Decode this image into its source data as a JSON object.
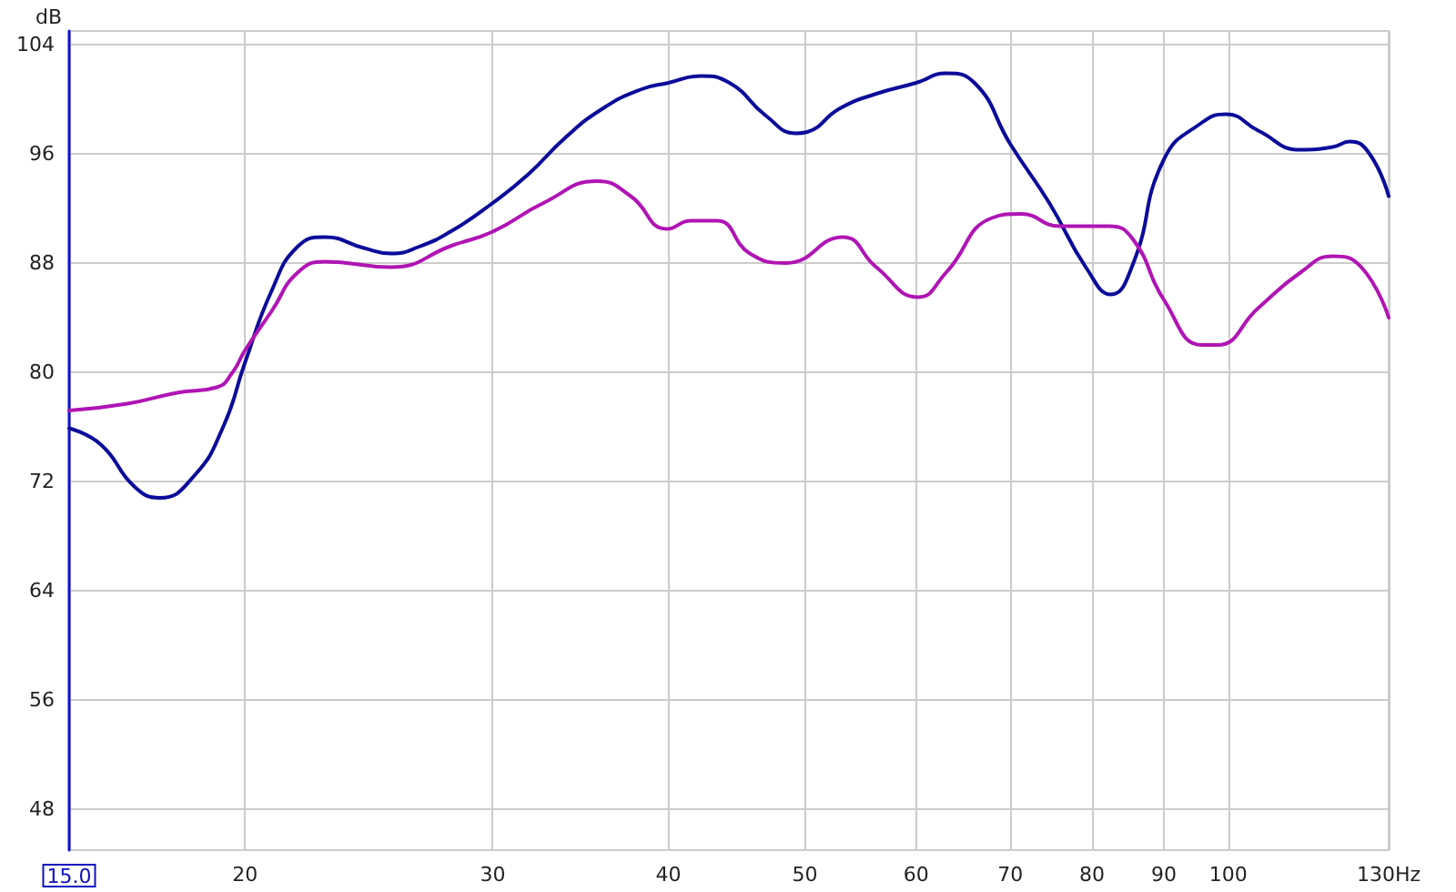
{
  "chart_data": {
    "type": "line",
    "ylabel": "dB",
    "log": "x",
    "grid": true,
    "marker": "none",
    "line_style": "solid",
    "xlim": [
      15,
      130
    ],
    "ylim": [
      45,
      105
    ],
    "xticks": [
      {
        "value": 15,
        "label": "15.0"
      },
      20,
      30,
      40,
      50,
      60,
      70,
      80,
      90,
      100,
      {
        "value": 130,
        "label": "130Hz"
      }
    ],
    "yticks": [
      48,
      56,
      64,
      72,
      80,
      88,
      96,
      104
    ],
    "series": [
      {
        "color": "#0b0b9a",
        "x": [
          15,
          15.8,
          16.7,
          17.4,
          18.4,
          19.3,
          20,
          20.9,
          21.8,
          22.8,
          24.3,
          25.4,
          26.6,
          28.1,
          30,
          31.8,
          33.8,
          35.9,
          38.2,
          40,
          42.2,
          44.2,
          46.9,
          49.3,
          50.2,
          52.9,
          56.2,
          60,
          63,
          66,
          70,
          74.6,
          79.3,
          82.5,
          85.6,
          90,
          95.8,
          99.6,
          105,
          112.5,
          118.6,
          122,
          126,
          130
        ],
        "values": [
          75.9,
          74.7,
          71.6,
          70.8,
          72.4,
          76,
          80.7,
          86,
          89.2,
          89.9,
          89.1,
          88.7,
          89.2,
          90.4,
          92.4,
          94.5,
          97.2,
          99.3,
          100.7,
          101.2,
          101.7,
          101.2,
          98.8,
          97.5,
          97.6,
          99.3,
          100.4,
          101.2,
          101.9,
          101.2,
          96.7,
          92.4,
          87.6,
          85.7,
          88,
          95.6,
          98.3,
          98.9,
          97.7,
          96.3,
          96.5,
          96.9,
          96,
          92.9
        ]
      },
      {
        "color": "#b014b4",
        "x": [
          15,
          16.5,
          17.9,
          19.1,
          19.6,
          20,
          20.9,
          21.8,
          22.8,
          25.4,
          28.1,
          30,
          32.6,
          35.6,
          37.6,
          39.9,
          41.5,
          43.3,
          45.7,
          48.5,
          53.2,
          56.2,
          60.2,
          63,
          67.9,
          71.2,
          75.9,
          82.3,
          85.6,
          90,
          95.8,
          98.2,
          105,
          112.5,
          118.6,
          124.3,
          130
        ],
        "values": [
          77.2,
          77.7,
          78.5,
          78.9,
          80,
          81.6,
          84.5,
          87.3,
          88.1,
          87.7,
          89.3,
          90.3,
          92.4,
          94,
          92.9,
          90.5,
          91.1,
          91.1,
          88.7,
          88,
          89.9,
          87.7,
          85.5,
          87.3,
          91.3,
          91.6,
          90.7,
          90.7,
          89.7,
          85.3,
          82,
          82,
          84.7,
          87.3,
          88.5,
          87.7,
          84
        ]
      }
    ]
  }
}
